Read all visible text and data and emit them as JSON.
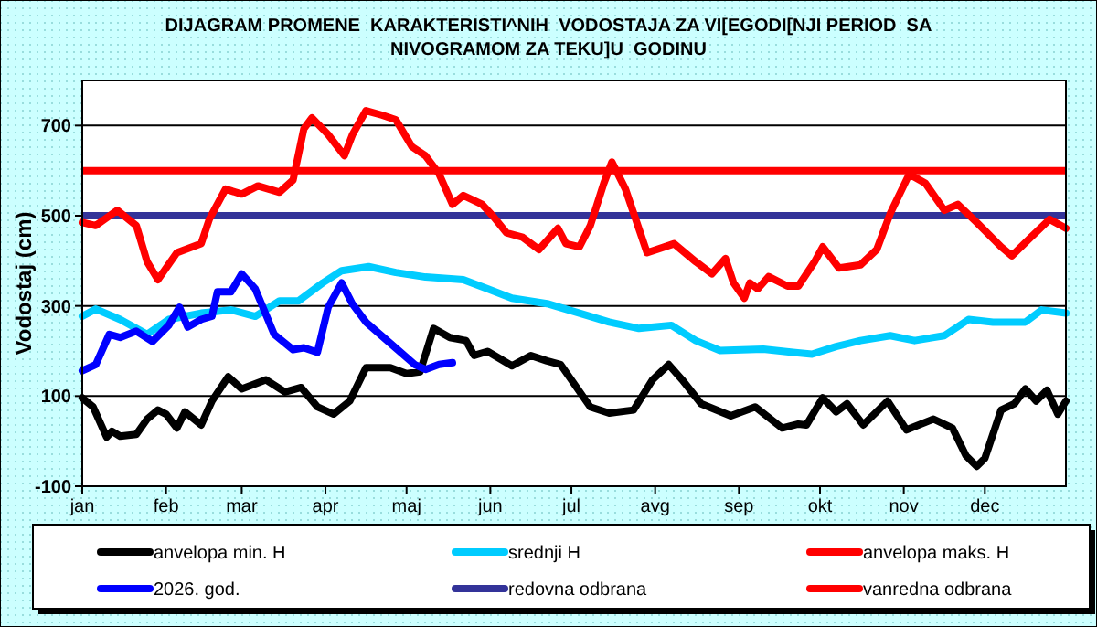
{
  "chart_data": {
    "type": "line",
    "title": "DIJAGRAM PROMENE  KARAKTERISTI^NIH  VODOSTAJA ZA VI[EGODI[NJI PERIOD  SA\nNIVOGRAMOM ZA TEKU]U  GODINU",
    "ylabel": "Vodostaj (cm)",
    "xlim": [
      "--01-01",
      "--12-31"
    ],
    "xticks": [
      {
        "value": "--01-01",
        "label": "jan"
      },
      {
        "value": "--02-01",
        "label": "feb"
      },
      {
        "value": "--03-01",
        "label": "mar"
      },
      {
        "value": "--04-01",
        "label": "apr"
      },
      {
        "value": "--05-01",
        "label": "maj"
      },
      {
        "value": "--06-01",
        "label": "jun"
      },
      {
        "value": "--07-01",
        "label": "jul"
      },
      {
        "value": "--08-01",
        "label": "avg"
      },
      {
        "value": "--09-01",
        "label": "sep"
      },
      {
        "value": "--10-01",
        "label": "okt"
      },
      {
        "value": "--11-01",
        "label": "nov"
      },
      {
        "value": "--12-01",
        "label": "dec"
      }
    ],
    "ylim": [
      -100,
      800
    ],
    "yticks": [
      -100,
      100,
      300,
      500,
      700
    ],
    "grid": "y",
    "legend": "bottom",
    "marker": "none",
    "line_style": "solid",
    "series": [
      {
        "name": "anvelopa min. H",
        "color": "#000000",
        "x": [
          "--01-01",
          "--01-05",
          "--01-10",
          "--01-12",
          "--01-15",
          "--01-21",
          "--01-25",
          "--01-29",
          "--02-01",
          "--02-05",
          "--02-08",
          "--02-14",
          "--02-18",
          "--02-24",
          "--03-01",
          "--03-10",
          "--03-17",
          "--03-23",
          "--03-29",
          "--04-04",
          "--04-10",
          "--04-16",
          "--04-25",
          "--05-01",
          "--05-06",
          "--05-11",
          "--05-17",
          "--05-23",
          "--05-26",
          "--05-31",
          "--06-09",
          "--06-16",
          "--06-22",
          "--06-27",
          "--07-08",
          "--07-15",
          "--07-24",
          "--07-31",
          "--08-06",
          "--08-11",
          "--08-18",
          "--08-29",
          "--09-07",
          "--09-17",
          "--09-23",
          "--09-26",
          "--10-02",
          "--10-07",
          "--10-11",
          "--10-17",
          "--10-26",
          "--11-02",
          "--11-12",
          "--11-19",
          "--11-24",
          "--11-28",
          "--12-01",
          "--12-07",
          "--12-12",
          "--12-16",
          "--12-20",
          "--12-24",
          "--12-28",
          "--12-31"
        ],
        "values": [
          96,
          76,
          9,
          22,
          11,
          15,
          49,
          69,
          60,
          29,
          65,
          36,
          89,
          143,
          116,
          136,
          109,
          119,
          76,
          60,
          89,
          163,
          163,
          150,
          154,
          250,
          230,
          223,
          190,
          199,
          167,
          190,
          178,
          170,
          76,
          62,
          69,
          136,
          170,
          136,
          83,
          56,
          76,
          29,
          38,
          36,
          96,
          65,
          83,
          36,
          89,
          25,
          49,
          29,
          -32,
          -56,
          -38,
          69,
          83,
          116,
          89,
          113,
          60,
          89
        ]
      },
      {
        "name": "srednji H",
        "color": "#00ccff",
        "x": [
          "--01-01",
          "--01-06",
          "--01-15",
          "--01-25",
          "--02-02",
          "--02-14",
          "--02-25",
          "--03-06",
          "--03-15",
          "--03-22",
          "--03-31",
          "--04-07",
          "--04-17",
          "--04-27",
          "--05-08",
          "--05-22",
          "--05-31",
          "--06-09",
          "--06-22",
          "--07-04",
          "--07-15",
          "--07-26",
          "--08-07",
          "--08-16",
          "--08-25",
          "--09-10",
          "--09-21",
          "--09-28",
          "--10-07",
          "--10-16",
          "--10-27",
          "--11-05",
          "--11-16",
          "--11-25",
          "--12-04",
          "--12-16",
          "--12-22",
          "--12-31"
        ],
        "values": [
          277,
          293,
          270,
          237,
          270,
          284,
          291,
          277,
          311,
          311,
          351,
          378,
          387,
          374,
          364,
          358,
          338,
          317,
          305,
          284,
          264,
          250,
          257,
          223,
          201,
          204,
          197,
          193,
          210,
          223,
          234,
          223,
          234,
          270,
          264,
          264,
          291,
          284
        ]
      },
      {
        "name": "anvelopa maks. H",
        "color": "#ff0000",
        "x": [
          "--01-01",
          "--01-06",
          "--01-14",
          "--01-21",
          "--01-25",
          "--01-29",
          "--02-05",
          "--02-14",
          "--02-17",
          "--02-23",
          "--03-01",
          "--03-07",
          "--03-15",
          "--03-20",
          "--03-24",
          "--03-27",
          "--04-02",
          "--04-08",
          "--04-11",
          "--04-16",
          "--04-22",
          "--04-27",
          "--05-03",
          "--05-08",
          "--05-13",
          "--05-18",
          "--05-22",
          "--05-29",
          "--06-02",
          "--06-07",
          "--06-13",
          "--06-19",
          "--06-22",
          "--06-26",
          "--06-29",
          "--07-04",
          "--07-08",
          "--07-13",
          "--07-16",
          "--07-21",
          "--07-29",
          "--08-08",
          "--08-16",
          "--08-22",
          "--08-27",
          "--08-30",
          "--09-03",
          "--09-05",
          "--09-08",
          "--09-12",
          "--09-19",
          "--09-23",
          "--09-29",
          "--10-02",
          "--10-08",
          "--10-16",
          "--10-22",
          "--10-27",
          "--11-03",
          "--11-09",
          "--11-16",
          "--11-21",
          "--11-28",
          "--12-07",
          "--12-11",
          "--12-18",
          "--12-25",
          "--12-31"
        ],
        "values": [
          485,
          478,
          512,
          478,
          398,
          358,
          418,
          438,
          492,
          559,
          548,
          566,
          552,
          579,
          693,
          717,
          680,
          633,
          680,
          733,
          723,
          713,
          653,
          633,
          593,
          525,
          545,
          525,
          499,
          462,
          452,
          425,
          445,
          472,
          438,
          431,
          478,
          572,
          619,
          559,
          418,
          438,
          398,
          371,
          405,
          351,
          317,
          351,
          338,
          365,
          344,
          344,
          398,
          431,
          384,
          391,
          425,
          505,
          592,
          572,
          512,
          525,
          485,
          431,
          411,
          452,
          492,
          472
        ]
      },
      {
        "name": "2026. god.",
        "color": "#0000ff",
        "x": [
          "--01-01",
          "--01-06",
          "--01-11",
          "--01-15",
          "--01-21",
          "--01-27",
          "--02-02",
          "--02-06",
          "--02-09",
          "--02-14",
          "--02-18",
          "--02-20",
          "--02-25",
          "--03-01",
          "--03-06",
          "--03-13",
          "--03-20",
          "--03-24",
          "--03-29",
          "--04-02",
          "--04-07",
          "--04-11",
          "--04-16",
          "--04-25",
          "--05-04",
          "--05-08",
          "--05-13",
          "--05-18"
        ],
        "values": [
          156,
          170,
          237,
          230,
          244,
          221,
          257,
          297,
          253,
          270,
          277,
          331,
          331,
          371,
          338,
          237,
          203,
          207,
          197,
          297,
          351,
          304,
          264,
          217,
          170,
          159,
          170,
          174
        ]
      }
    ],
    "ref_lines": [
      {
        "axis": "y",
        "value": 500,
        "label": "redovna odbrana",
        "color": "#333399"
      },
      {
        "axis": "y",
        "value": 600,
        "label": "vanredna odbrana",
        "color": "#ff0000"
      }
    ]
  }
}
